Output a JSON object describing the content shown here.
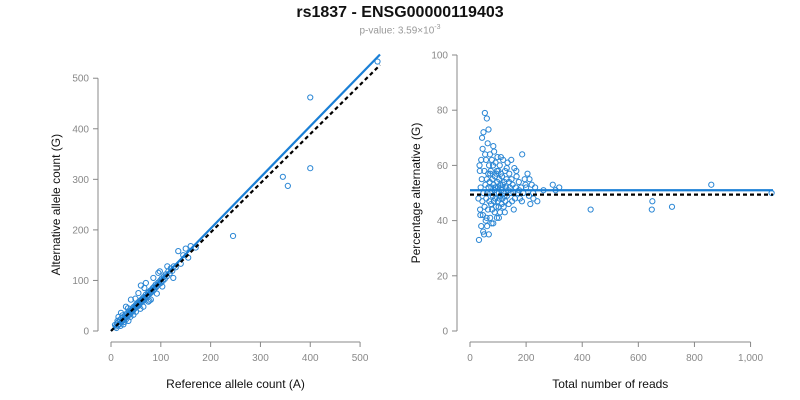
{
  "header": {
    "title": "rs1837 - ENSG00000119403",
    "pvalue_prefix": "p-value: 3.59×10",
    "pvalue_exponent": "-3"
  },
  "colors": {
    "points": "#2a86d4",
    "fit_line": "#1a7fd6",
    "expected_line": "#000000"
  },
  "chart_data": [
    {
      "type": "scatter",
      "xlabel": "Reference allele count (A)",
      "ylabel": "Alternative allele count (G)",
      "xlim": [
        0,
        540
      ],
      "ylim": [
        0,
        540
      ],
      "xticks": [
        0,
        100,
        200,
        300,
        400,
        500
      ],
      "xtick_labels": [
        "0",
        "100",
        "200",
        "300",
        "400",
        "500"
      ],
      "yticks": [
        0,
        100,
        200,
        300,
        400,
        500
      ],
      "ytick_labels": [
        "0",
        "100",
        "200",
        "300",
        "400",
        "500"
      ],
      "fit_line": [
        [
          0,
          0
        ],
        [
          540,
          547
        ]
      ],
      "expected_line": [
        [
          0,
          0
        ],
        [
          540,
          526
        ]
      ],
      "points": [
        [
          8,
          12
        ],
        [
          10,
          9
        ],
        [
          12,
          15
        ],
        [
          14,
          11
        ],
        [
          15,
          18
        ],
        [
          17,
          14
        ],
        [
          18,
          22
        ],
        [
          20,
          17
        ],
        [
          21,
          25
        ],
        [
          22,
          19
        ],
        [
          24,
          21
        ],
        [
          25,
          28
        ],
        [
          26,
          23
        ],
        [
          28,
          26
        ],
        [
          29,
          31
        ],
        [
          30,
          27
        ],
        [
          31,
          24
        ],
        [
          32,
          35
        ],
        [
          33,
          30
        ],
        [
          35,
          33
        ],
        [
          36,
          38
        ],
        [
          37,
          32
        ],
        [
          38,
          36
        ],
        [
          40,
          41
        ],
        [
          41,
          37
        ],
        [
          42,
          39
        ],
        [
          43,
          45
        ],
        [
          44,
          40
        ],
        [
          45,
          42
        ],
        [
          46,
          48
        ],
        [
          47,
          44
        ],
        [
          48,
          46
        ],
        [
          50,
          52
        ],
        [
          51,
          47
        ],
        [
          52,
          50
        ],
        [
          53,
          55
        ],
        [
          54,
          49
        ],
        [
          55,
          53
        ],
        [
          56,
          58
        ],
        [
          57,
          52
        ],
        [
          58,
          56
        ],
        [
          60,
          61
        ],
        [
          61,
          57
        ],
        [
          62,
          60
        ],
        [
          63,
          64
        ],
        [
          64,
          59
        ],
        [
          65,
          62
        ],
        [
          66,
          67
        ],
        [
          68,
          63
        ],
        [
          69,
          66
        ],
        [
          70,
          72
        ],
        [
          72,
          68
        ],
        [
          73,
          70
        ],
        [
          74,
          75
        ],
        [
          75,
          71
        ],
        [
          76,
          77
        ],
        [
          78,
          74
        ],
        [
          79,
          80
        ],
        [
          80,
          76
        ],
        [
          82,
          82
        ],
        [
          83,
          78
        ],
        [
          84,
          85
        ],
        [
          86,
          81
        ],
        [
          87,
          88
        ],
        [
          88,
          84
        ],
        [
          90,
          92
        ],
        [
          91,
          87
        ],
        [
          93,
          90
        ],
        [
          95,
          96
        ],
        [
          97,
          93
        ],
        [
          99,
          100
        ],
        [
          100,
          95
        ],
        [
          102,
          104
        ],
        [
          104,
          99
        ],
        [
          106,
          108
        ],
        [
          108,
          103
        ],
        [
          110,
          112
        ],
        [
          112,
          108
        ],
        [
          115,
          118
        ],
        [
          118,
          114
        ],
        [
          120,
          124
        ],
        [
          123,
          119
        ],
        [
          126,
          128
        ],
        [
          130,
          126
        ],
        [
          135,
          158
        ],
        [
          140,
          133
        ],
        [
          145,
          150
        ],
        [
          155,
          145
        ],
        [
          160,
          168
        ],
        [
          95,
          115
        ],
        [
          60,
          90
        ],
        [
          40,
          62
        ],
        [
          30,
          48
        ],
        [
          55,
          75
        ],
        [
          70,
          95
        ],
        [
          20,
          36
        ],
        [
          15,
          28
        ],
        [
          45,
          32
        ],
        [
          65,
          48
        ],
        [
          80,
          62
        ],
        [
          35,
          20
        ],
        [
          25,
          13
        ],
        [
          50,
          38
        ],
        [
          75,
          58
        ],
        [
          11,
          6
        ],
        [
          13,
          20
        ],
        [
          19,
          10
        ],
        [
          23,
          31
        ],
        [
          27,
          18
        ],
        [
          34,
          45
        ],
        [
          39,
          28
        ],
        [
          49,
          64
        ],
        [
          59,
          44
        ],
        [
          67,
          85
        ],
        [
          77,
          60
        ],
        [
          85,
          105
        ],
        [
          92,
          74
        ],
        [
          98,
          118
        ],
        [
          103,
          88
        ],
        [
          113,
          128
        ],
        [
          125,
          105
        ],
        [
          150,
          163
        ],
        [
          170,
          165
        ],
        [
          245,
          188
        ],
        [
          345,
          305
        ],
        [
          355,
          287
        ],
        [
          400,
          462
        ],
        [
          400,
          322
        ],
        [
          535,
          533
        ]
      ]
    },
    {
      "type": "scatter",
      "xlabel": "Total number of reads",
      "ylabel": "Percentage alternative (G)",
      "xlim": [
        0,
        1080
      ],
      "ylim": [
        0,
        100
      ],
      "xticks": [
        0,
        200,
        400,
        600,
        800,
        1000
      ],
      "xtick_labels": [
        "0",
        "200",
        "400",
        "600",
        "800",
        "1,000"
      ],
      "yticks": [
        0,
        20,
        40,
        60,
        80,
        100
      ],
      "ytick_labels": [
        "0",
        "20",
        "40",
        "60",
        "80",
        "100"
      ],
      "fit_line": [
        [
          0,
          51.0
        ],
        [
          1080,
          51.0
        ]
      ],
      "expected_line": [
        [
          0,
          49.4
        ],
        [
          1080,
          49.4
        ]
      ],
      "points": [
        [
          30,
          48
        ],
        [
          32,
          33
        ],
        [
          35,
          58
        ],
        [
          36,
          44
        ],
        [
          38,
          52
        ],
        [
          40,
          62
        ],
        [
          40,
          38
        ],
        [
          42,
          55
        ],
        [
          44,
          47
        ],
        [
          45,
          66
        ],
        [
          46,
          42
        ],
        [
          48,
          50
        ],
        [
          48,
          72
        ],
        [
          50,
          35
        ],
        [
          51,
          58
        ],
        [
          52,
          45
        ],
        [
          53,
          79
        ],
        [
          55,
          53
        ],
        [
          56,
          40
        ],
        [
          57,
          62
        ],
        [
          58,
          48
        ],
        [
          60,
          77
        ],
        [
          60,
          55
        ],
        [
          61,
          38
        ],
        [
          62,
          50
        ],
        [
          63,
          68
        ],
        [
          64,
          44
        ],
        [
          65,
          57
        ],
        [
          66,
          52
        ],
        [
          67,
          35
        ],
        [
          68,
          60
        ],
        [
          69,
          47
        ],
        [
          70,
          54
        ],
        [
          71,
          64
        ],
        [
          72,
          41
        ],
        [
          73,
          50
        ],
        [
          74,
          58
        ],
        [
          75,
          46
        ],
        [
          76,
          52
        ],
        [
          78,
          62
        ],
        [
          79,
          44
        ],
        [
          80,
          55
        ],
        [
          81,
          49
        ],
        [
          82,
          60
        ],
        [
          83,
          39
        ],
        [
          84,
          53
        ],
        [
          85,
          47
        ],
        [
          86,
          65
        ],
        [
          87,
          51
        ],
        [
          88,
          43
        ],
        [
          89,
          56
        ],
        [
          90,
          48
        ],
        [
          91,
          61
        ],
        [
          92,
          52
        ],
        [
          93,
          45
        ],
        [
          94,
          57
        ],
        [
          95,
          50
        ],
        [
          96,
          41
        ],
        [
          97,
          54
        ],
        [
          98,
          63
        ],
        [
          99,
          47
        ],
        [
          100,
          52
        ],
        [
          101,
          58
        ],
        [
          102,
          45
        ],
        [
          103,
          50
        ],
        [
          104,
          55
        ],
        [
          105,
          48
        ],
        [
          106,
          60
        ],
        [
          107,
          43
        ],
        [
          108,
          53
        ],
        [
          109,
          49
        ],
        [
          110,
          57
        ],
        [
          112,
          51
        ],
        [
          113,
          46
        ],
        [
          114,
          56
        ],
        [
          115,
          52
        ],
        [
          116,
          48
        ],
        [
          118,
          62
        ],
        [
          119,
          50
        ],
        [
          120,
          45
        ],
        [
          122,
          54
        ],
        [
          123,
          49
        ],
        [
          125,
          58
        ],
        [
          126,
          47
        ],
        [
          128,
          52
        ],
        [
          130,
          55
        ],
        [
          132,
          49
        ],
        [
          134,
          61
        ],
        [
          136,
          51
        ],
        [
          138,
          46
        ],
        [
          140,
          57
        ],
        [
          142,
          52
        ],
        [
          145,
          50
        ],
        [
          148,
          55
        ],
        [
          150,
          47
        ],
        [
          152,
          53
        ],
        [
          155,
          50
        ],
        [
          158,
          59
        ],
        [
          160,
          48
        ],
        [
          163,
          52
        ],
        [
          166,
          56
        ],
        [
          170,
          50
        ],
        [
          174,
          54
        ],
        [
          178,
          48
        ],
        [
          182,
          52
        ],
        [
          186,
          64
        ],
        [
          190,
          50
        ],
        [
          195,
          55
        ],
        [
          200,
          52
        ],
        [
          205,
          57
        ],
        [
          210,
          49
        ],
        [
          215,
          46
        ],
        [
          220,
          53
        ],
        [
          226,
          48
        ],
        [
          232,
          52
        ],
        [
          240,
          47
        ],
        [
          262,
          51
        ],
        [
          295,
          53
        ],
        [
          305,
          51
        ],
        [
          318,
          52
        ],
        [
          430,
          44
        ],
        [
          648,
          44
        ],
        [
          650,
          47
        ],
        [
          720,
          45
        ],
        [
          860,
          53
        ],
        [
          1075,
          50
        ],
        [
          34,
          60
        ],
        [
          37,
          42
        ],
        [
          43,
          70
        ],
        [
          47,
          36
        ],
        [
          54,
          64
        ],
        [
          59,
          41
        ],
        [
          66,
          73
        ],
        [
          72,
          57
        ],
        [
          77,
          39
        ],
        [
          83,
          67
        ],
        [
          89,
          52
        ],
        [
          96,
          58
        ],
        [
          103,
          41
        ],
        [
          110,
          63
        ],
        [
          117,
          53
        ],
        [
          124,
          43
        ],
        [
          131,
          59
        ],
        [
          139,
          54
        ],
        [
          147,
          62
        ],
        [
          156,
          44
        ],
        [
          165,
          58
        ],
        [
          175,
          51
        ],
        [
          185,
          47
        ],
        [
          198,
          53
        ],
        [
          212,
          55
        ],
        [
          225,
          50
        ]
      ]
    }
  ]
}
